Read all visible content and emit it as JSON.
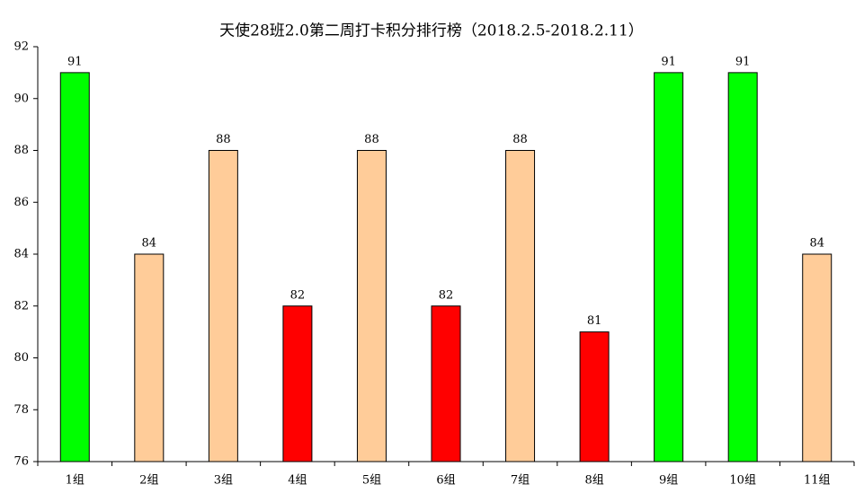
{
  "chart_data": {
    "type": "bar",
    "title": "天使28班2.0第二周打卡积分排行榜（2018.2.5-2018.2.11）",
    "categories": [
      "1组",
      "2组",
      "3组",
      "4组",
      "5组",
      "6组",
      "7组",
      "8组",
      "9组",
      "10组",
      "11组"
    ],
    "values": [
      91,
      84,
      88,
      82,
      88,
      82,
      88,
      81,
      91,
      91,
      84
    ],
    "colors": [
      "#00ff00",
      "#ffcc99",
      "#ffcc99",
      "#ff0000",
      "#ffcc99",
      "#ff0000",
      "#ffcc99",
      "#ff0000",
      "#00ff00",
      "#00ff00",
      "#ffcc99"
    ],
    "ylim": [
      76,
      92
    ],
    "yticks": [
      76,
      78,
      80,
      82,
      84,
      86,
      88,
      90,
      92
    ],
    "grid": false
  }
}
